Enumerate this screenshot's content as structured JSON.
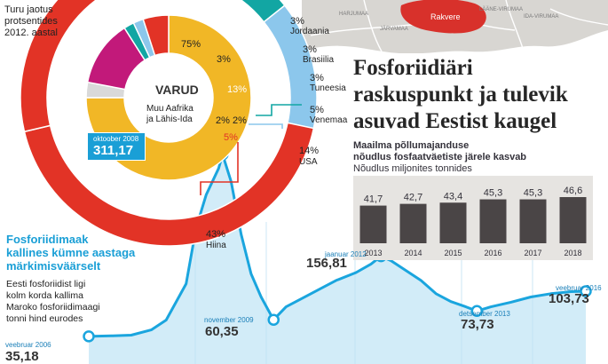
{
  "map": {
    "region_labels": [
      "HARJUMAA",
      "JÄRVAMAA",
      "LÄÄNE-VIRUMAA",
      "IDA-VIRUMAA"
    ],
    "highlight_label": "Rakvere",
    "colors": {
      "land": "#d8d6d2",
      "highlight": "#d8312b",
      "roads": "#ffffff"
    }
  },
  "headline": {
    "line1": "Fosforiidiäri",
    "line2": "raskuspunkt ja tulevik",
    "line3": "asuvad Eestist kaugel"
  },
  "chart_data": [
    {
      "type": "pie",
      "title_lines": [
        "Turu jaotus",
        "protsentides",
        "2012. aastal"
      ],
      "rings": [
        {
          "name": "",
          "slices": [
            {
              "label": "Jordaania",
              "value": 3,
              "color": "#c8c8c8"
            },
            {
              "label": "Brasiilia",
              "value": 3,
              "color": "#e8a5c7"
            },
            {
              "label": "Tuneesia",
              "value": 3,
              "color": "#1d62ae"
            },
            {
              "label": "Venemaa",
              "value": 5,
              "color": "#12a6a3"
            },
            {
              "label": "USA",
              "value": 14,
              "color": "#8cc7ec"
            },
            {
              "label": "Hiina",
              "value": 43,
              "color": "#e23326"
            },
            {
              "label": "",
              "value": 29,
              "color": "#e23326"
            }
          ]
        },
        {
          "name": "VARUD",
          "subtitle_lines": [
            "Muu Aafrika",
            "ja Lähis-Ida"
          ],
          "slices": [
            {
              "label": "",
              "value": 75,
              "color": "#f1b726"
            },
            {
              "label": "",
              "value": 3,
              "color": "#d9d9d9"
            },
            {
              "label": "Muu Aafrika ja Lähis-Ida",
              "value": 13,
              "color": "#c2197a"
            },
            {
              "label": "",
              "value": 2,
              "color": "#12a6a3"
            },
            {
              "label": "",
              "value": 2,
              "color": "#8cc7ec"
            },
            {
              "label": "",
              "value": 5,
              "color": "#e23326"
            }
          ]
        }
      ],
      "percent_labels": [
        "3%",
        "3%",
        "3%",
        "5%",
        "14%",
        "43%",
        "75%",
        "3%",
        "13%",
        "2%",
        "2%",
        "5%"
      ]
    },
    {
      "type": "bar",
      "title_lines": [
        "Maailma põllumajanduse",
        "nõudlus fosfaatväetiste järele kasvab"
      ],
      "ylabel": "Nõudlus miljonites tonnides",
      "categories": [
        "2013",
        "2014",
        "2015",
        "2016",
        "2017",
        "2018"
      ],
      "values": [
        41.7,
        42.7,
        43.4,
        45.3,
        45.3,
        46.6
      ],
      "value_labels": [
        "41,7",
        "42,7",
        "43,4",
        "45,3",
        "45,3",
        "46,6"
      ],
      "ylim": [
        0,
        50
      ],
      "bar_color": "#4a4546",
      "panel_color": "#e6e4e1"
    },
    {
      "type": "line",
      "title_lines": [
        "Fosforiidimaak",
        "kallines kümne aastaga",
        "märkimisväärselt"
      ],
      "description_lines": [
        "Eesti fosforiidist ligi",
        "kolm korda kallima",
        "Maroko fosforiidimaagi",
        "tonni hind eurodes"
      ],
      "line_color": "#1aa5de",
      "fill_color": "#d2ecf8",
      "x": [
        2006.15,
        2006.6,
        2007.0,
        2007.4,
        2007.7,
        2008.1,
        2008.3,
        2008.5,
        2008.75,
        2008.83,
        2009.0,
        2009.2,
        2009.4,
        2009.6,
        2009.85,
        2010.1,
        2010.4,
        2010.8,
        2011.1,
        2011.5,
        2011.8,
        2012.0,
        2012.2,
        2012.5,
        2012.8,
        2013.1,
        2013.4,
        2013.7,
        2013.92,
        2014.2,
        2014.6,
        2015.0,
        2015.4,
        2015.8,
        2016.1
      ],
      "y": [
        35.18,
        36,
        37,
        45,
        60,
        115,
        200,
        250,
        290,
        311.17,
        270,
        190,
        130,
        95,
        60.35,
        80,
        92,
        108,
        120,
        132,
        145,
        156.81,
        150,
        135,
        120,
        100,
        88,
        80,
        73.73,
        80,
        87,
        95,
        100,
        103,
        103.73
      ],
      "ylim": [
        0,
        420
      ],
      "annotations": [
        {
          "date": "veebruar 2006",
          "value": "35,18",
          "x": 2006.15,
          "y": 35.18,
          "boxed": false
        },
        {
          "date": "oktoober 2008",
          "value": "311,17",
          "x": 2008.83,
          "y": 311.17,
          "boxed": true
        },
        {
          "date": "november 2009",
          "value": "60,35",
          "x": 2009.85,
          "y": 60.35,
          "boxed": false
        },
        {
          "date": "jaanuar 2012",
          "value": "156,81",
          "x": 2012.0,
          "y": 156.81,
          "boxed": false
        },
        {
          "date": "detsember 2013",
          "value": "73,73",
          "x": 2013.92,
          "y": 73.73,
          "boxed": false
        },
        {
          "date": "veebruar 2016",
          "value": "103,73",
          "x": 2016.1,
          "y": 103.73,
          "boxed": false
        }
      ]
    }
  ]
}
